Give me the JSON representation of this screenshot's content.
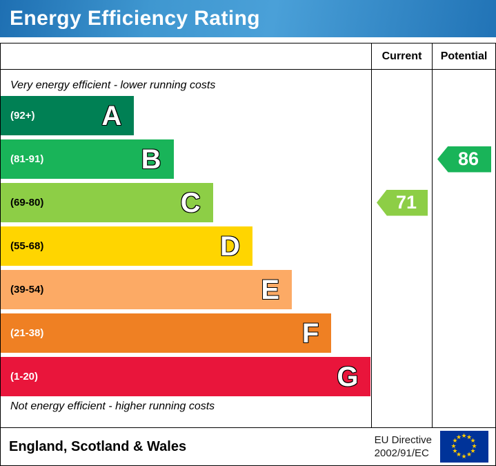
{
  "banner": {
    "title": "Energy Efficiency Rating"
  },
  "table": {
    "current_header": "Current",
    "potential_header": "Potential"
  },
  "notes": {
    "top": "Very energy efficient - lower running costs",
    "bottom": "Not energy efficient - higher running costs"
  },
  "bands": [
    {
      "letter": "A",
      "range": "(92+)",
      "color": "#008054",
      "text_color": "#ffffff"
    },
    {
      "letter": "B",
      "range": "(81-91)",
      "color": "#19b459",
      "text_color": "#ffffff"
    },
    {
      "letter": "C",
      "range": "(69-80)",
      "color": "#8dce46",
      "text_color": "#000000"
    },
    {
      "letter": "D",
      "range": "(55-68)",
      "color": "#ffd500",
      "text_color": "#000000"
    },
    {
      "letter": "E",
      "range": "(39-54)",
      "color": "#fcaa65",
      "text_color": "#000000"
    },
    {
      "letter": "F",
      "range": "(21-38)",
      "color": "#ef8023",
      "text_color": "#ffffff"
    },
    {
      "letter": "G",
      "range": "(1-20)",
      "color": "#e9153b",
      "text_color": "#ffffff"
    }
  ],
  "current": {
    "value": "71",
    "band_index": 2,
    "color": "#8dce46"
  },
  "potential": {
    "value": "86",
    "band_index": 1,
    "color": "#19b459"
  },
  "footer": {
    "region": "England, Scotland & Wales",
    "directive_line1": "EU Directive",
    "directive_line2": "2002/91/EC",
    "flag_color": "#003399",
    "star_color": "#ffcc00"
  },
  "chart_data": {
    "type": "bar",
    "title": "Energy Efficiency Rating",
    "categories": [
      "A",
      "B",
      "C",
      "D",
      "E",
      "F",
      "G"
    ],
    "ranges": [
      "92+",
      "81-91",
      "69-80",
      "55-68",
      "39-54",
      "21-38",
      "1-20"
    ],
    "colors": [
      "#008054",
      "#19b459",
      "#8dce46",
      "#ffd500",
      "#fcaa65",
      "#ef8023",
      "#e9153b"
    ],
    "bar_lengths_relative": [
      36,
      47,
      58,
      68,
      79,
      89,
      100
    ],
    "series": [
      {
        "name": "Current",
        "value": 71,
        "band": "C",
        "color": "#8dce46"
      },
      {
        "name": "Potential",
        "value": 86,
        "band": "B",
        "color": "#19b459"
      }
    ],
    "annotations": [
      "Very energy efficient - lower running costs",
      "Not energy efficient - higher running costs"
    ],
    "region_note": "England, Scotland & Wales",
    "directive": "EU Directive 2002/91/EC",
    "legend_position": "none",
    "grid": false
  }
}
